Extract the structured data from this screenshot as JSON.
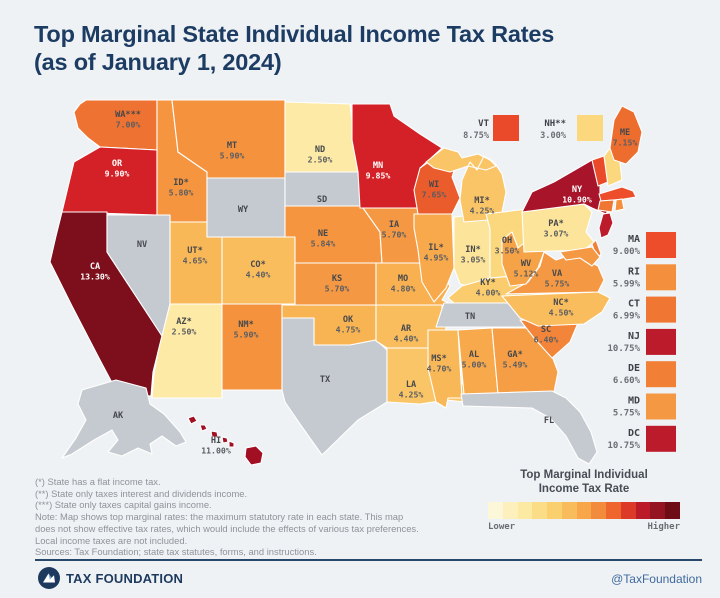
{
  "title_line1": "Top Marginal State Individual Income Tax Rates",
  "title_line2": "(as of January 1, 2024)",
  "map": {
    "border_color": "#ffffff",
    "no_tax_color": "#c5cad0",
    "states": [
      {
        "id": "wa",
        "abbr": "WA***",
        "rate": "7.00%",
        "color": "#ee7231",
        "label": true,
        "dark": false
      },
      {
        "id": "or",
        "abbr": "OR",
        "rate": "9.90%",
        "color": "#d42127",
        "label": true,
        "dark": true
      },
      {
        "id": "ca",
        "abbr": "CA",
        "rate": "13.30%",
        "color": "#7c0f1b",
        "label": true,
        "dark": true
      },
      {
        "id": "id",
        "abbr": "ID*",
        "rate": "5.80%",
        "color": "#f59540",
        "label": true,
        "dark": false
      },
      {
        "id": "nv",
        "abbr": "NV",
        "rate": "",
        "color": "#c5cad0",
        "label": true,
        "dark": false
      },
      {
        "id": "ut",
        "abbr": "UT*",
        "rate": "4.65%",
        "color": "#f9b857",
        "label": true,
        "dark": false
      },
      {
        "id": "az",
        "abbr": "AZ*",
        "rate": "2.50%",
        "color": "#fdeaa6",
        "label": true,
        "dark": false
      },
      {
        "id": "mt",
        "abbr": "MT",
        "rate": "5.90%",
        "color": "#f4923e",
        "label": true,
        "dark": false
      },
      {
        "id": "wy",
        "abbr": "WY",
        "rate": "",
        "color": "#c5cad0",
        "label": true,
        "dark": false
      },
      {
        "id": "co",
        "abbr": "CO*",
        "rate": "4.40%",
        "color": "#f9bd5d",
        "label": true,
        "dark": false
      },
      {
        "id": "nm",
        "abbr": "NM*",
        "rate": "5.90%",
        "color": "#f4923e",
        "label": true,
        "dark": false
      },
      {
        "id": "nd",
        "abbr": "ND",
        "rate": "2.50%",
        "color": "#fdeaa6",
        "label": true,
        "dark": false
      },
      {
        "id": "sd",
        "abbr": "SD",
        "rate": "",
        "color": "#c5cad0",
        "label": true,
        "dark": false
      },
      {
        "id": "ne",
        "abbr": "NE",
        "rate": "5.84%",
        "color": "#f59540",
        "label": true,
        "dark": false
      },
      {
        "id": "ks",
        "abbr": "KS",
        "rate": "5.70%",
        "color": "#f59843",
        "label": true,
        "dark": false
      },
      {
        "id": "ok",
        "abbr": "OK",
        "rate": "4.75%",
        "color": "#f8b453",
        "label": true,
        "dark": false
      },
      {
        "id": "tx",
        "abbr": "TX",
        "rate": "",
        "color": "#c5cad0",
        "label": true,
        "dark": false
      },
      {
        "id": "mn",
        "abbr": "MN",
        "rate": "9.85%",
        "color": "#d42127",
        "label": true,
        "dark": true
      },
      {
        "id": "ia",
        "abbr": "IA",
        "rate": "5.70%",
        "color": "#f59843",
        "label": true,
        "dark": false
      },
      {
        "id": "mo",
        "abbr": "MO",
        "rate": "4.80%",
        "color": "#f8b050",
        "label": true,
        "dark": false
      },
      {
        "id": "ar",
        "abbr": "AR",
        "rate": "4.40%",
        "color": "#f9bd5d",
        "label": true,
        "dark": false
      },
      {
        "id": "la",
        "abbr": "LA",
        "rate": "4.25%",
        "color": "#fac566",
        "label": true,
        "dark": false
      },
      {
        "id": "wi",
        "abbr": "WI",
        "rate": "7.65%",
        "color": "#ea5c2b",
        "label": true,
        "dark": false
      },
      {
        "id": "il",
        "abbr": "IL*",
        "rate": "4.95%",
        "color": "#f7a94c",
        "label": true,
        "dark": false
      },
      {
        "id": "in",
        "abbr": "IN*",
        "rate": "3.05%",
        "color": "#fce49a",
        "label": true,
        "dark": false
      },
      {
        "id": "mi",
        "abbr": "MI*",
        "rate": "4.25%",
        "color": "#fac566",
        "label": true,
        "dark": false
      },
      {
        "id": "oh",
        "abbr": "OH",
        "rate": "3.50%",
        "color": "#fbd87e",
        "label": true,
        "dark": false
      },
      {
        "id": "ky",
        "abbr": "KY*",
        "rate": "4.00%",
        "color": "#fbcc6d",
        "label": true,
        "dark": false
      },
      {
        "id": "tn",
        "abbr": "TN",
        "rate": "",
        "color": "#c5cad0",
        "label": true,
        "dark": false
      },
      {
        "id": "ms",
        "abbr": "MS*",
        "rate": "4.70%",
        "color": "#f9b857",
        "label": true,
        "dark": false
      },
      {
        "id": "al",
        "abbr": "AL",
        "rate": "5.00%",
        "color": "#f7a94c",
        "label": true,
        "dark": false
      },
      {
        "id": "ga",
        "abbr": "GA*",
        "rate": "5.49%",
        "color": "#f69e46",
        "label": true,
        "dark": false
      },
      {
        "id": "fl",
        "abbr": "FL",
        "rate": "",
        "color": "#c5cad0",
        "label": true,
        "dark": false
      },
      {
        "id": "sc",
        "abbr": "SC",
        "rate": "6.40%",
        "color": "#f28539",
        "label": true,
        "dark": false
      },
      {
        "id": "nc",
        "abbr": "NC*",
        "rate": "4.50%",
        "color": "#f9bd5d",
        "label": true,
        "dark": false
      },
      {
        "id": "va",
        "abbr": "VA",
        "rate": "5.75%",
        "color": "#f59843",
        "label": true,
        "dark": false
      },
      {
        "id": "wv",
        "abbr": "WV",
        "rate": "5.12%",
        "color": "#f6a348",
        "label": true,
        "dark": false
      },
      {
        "id": "pa",
        "abbr": "PA*",
        "rate": "3.07%",
        "color": "#fce49a",
        "label": true,
        "dark": false
      },
      {
        "id": "ny",
        "abbr": "NY",
        "rate": "10.90%",
        "color": "#a8142a",
        "label": true,
        "dark": true
      },
      {
        "id": "vt",
        "abbr": "VT",
        "rate": "8.75%",
        "color": "#ea4a29",
        "label": false,
        "dark": false
      },
      {
        "id": "nh",
        "abbr": "NH**",
        "rate": "3.00%",
        "color": "#fbd87e",
        "label": false,
        "dark": false
      },
      {
        "id": "me",
        "abbr": "ME",
        "rate": "7.15%",
        "color": "#ed6d2f",
        "label": true,
        "dark": false
      },
      {
        "id": "ma",
        "abbr": "MA",
        "rate": "9.00%",
        "color": "#ee4d2b",
        "label": false,
        "dark": false
      },
      {
        "id": "ct",
        "abbr": "CT",
        "rate": "6.99%",
        "color": "#ef7733",
        "label": false,
        "dark": false
      },
      {
        "id": "ri",
        "abbr": "RI",
        "rate": "5.99%",
        "color": "#f48f3d",
        "label": false,
        "dark": false
      },
      {
        "id": "nj",
        "abbr": "NJ",
        "rate": "10.75%",
        "color": "#bc1b2c",
        "label": false,
        "dark": false
      },
      {
        "id": "de",
        "abbr": "DE",
        "rate": "6.60%",
        "color": "#f18036",
        "label": false,
        "dark": false
      },
      {
        "id": "md",
        "abbr": "MD",
        "rate": "5.75%",
        "color": "#f59843",
        "label": false,
        "dark": false
      },
      {
        "id": "ak",
        "abbr": "AK",
        "rate": "",
        "color": "#c5cad0",
        "label": true,
        "dark": false
      },
      {
        "id": "hi",
        "abbr": "HI",
        "rate": "11.00%",
        "color": "#a20e22",
        "label": true,
        "dark": false
      }
    ]
  },
  "callouts": [
    {
      "abbr": "VT",
      "rate": "8.75%",
      "color": "#ea4a29"
    },
    {
      "abbr": "NH**",
      "rate": "3.00%",
      "color": "#fbd87e"
    }
  ],
  "side_list": [
    {
      "abbr": "MA",
      "rate": "9.00%",
      "color": "#ee4d2b"
    },
    {
      "abbr": "RI",
      "rate": "5.99%",
      "color": "#f48f3d"
    },
    {
      "abbr": "CT",
      "rate": "6.99%",
      "color": "#ef7733"
    },
    {
      "abbr": "NJ",
      "rate": "10.75%",
      "color": "#bc1b2c"
    },
    {
      "abbr": "DE",
      "rate": "6.60%",
      "color": "#f18036"
    },
    {
      "abbr": "MD",
      "rate": "5.75%",
      "color": "#f59843"
    },
    {
      "abbr": "DC",
      "rate": "10.75%",
      "color": "#bc1b2c"
    }
  ],
  "legend": {
    "title_line1": "Top Marginal Individual",
    "title_line2": "Income Tax Rate",
    "lower": "Lower",
    "higher": "Higher",
    "ramp": [
      "#fdf7d9",
      "#fdf0bc",
      "#fce9a2",
      "#fbdd88",
      "#fad06f",
      "#f9bc5c",
      "#f7a64a",
      "#f28c3c",
      "#ee652e",
      "#dc3928",
      "#bb1b28",
      "#951421",
      "#6f0d16"
    ]
  },
  "footnotes": [
    "(*) State has a flat income tax.",
    "(**) State only taxes interest and dividends income.",
    "(***) State only taxes capital gains income.",
    "Note: Map shows top marginal rates: the maximum statutory rate in each state. This map",
    "does not show effective tax rates, which would include the effects of various tax preferences.",
    "Local income taxes are not included.",
    "Sources: Tax Foundation; state tax statutes, forms, and instructions."
  ],
  "footer": {
    "brand": "TAX FOUNDATION",
    "handle": "@TaxFoundation"
  }
}
